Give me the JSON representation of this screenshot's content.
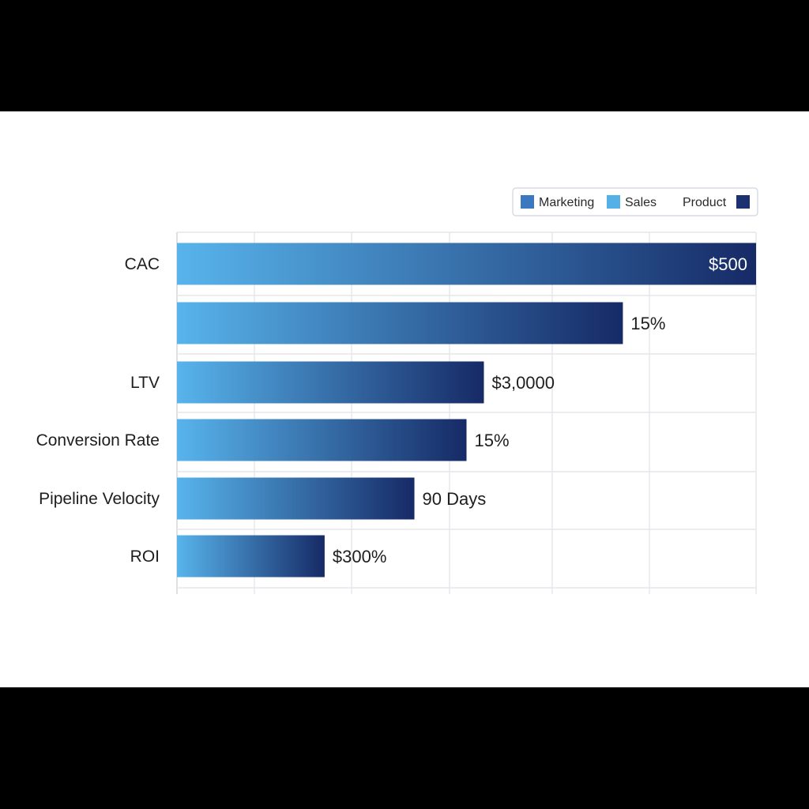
{
  "chart_data": {
    "type": "bar",
    "orientation": "horizontal",
    "categories": [
      "CAC",
      "",
      "LTV",
      "Conversion Rate",
      "Pipeline Velocity",
      "ROI"
    ],
    "values": [
      100,
      77,
      53,
      50,
      41,
      25.5
    ],
    "value_labels": [
      "$500",
      "15%",
      "$3,0000",
      "15%",
      "90 Days",
      "$300%"
    ],
    "legend": {
      "placement": "top-right",
      "entries": [
        {
          "name": "Marketing",
          "color": "#3b78c0"
        },
        {
          "name": "Sales",
          "color": "#55b0e8"
        },
        {
          "name": "Product",
          "color": "#1c3270"
        }
      ]
    },
    "bar_gradient": {
      "start": "#58b4ec",
      "end": "#162a66"
    },
    "xlim": [
      0,
      100
    ],
    "grid": true,
    "axis_tick_labels": false
  }
}
